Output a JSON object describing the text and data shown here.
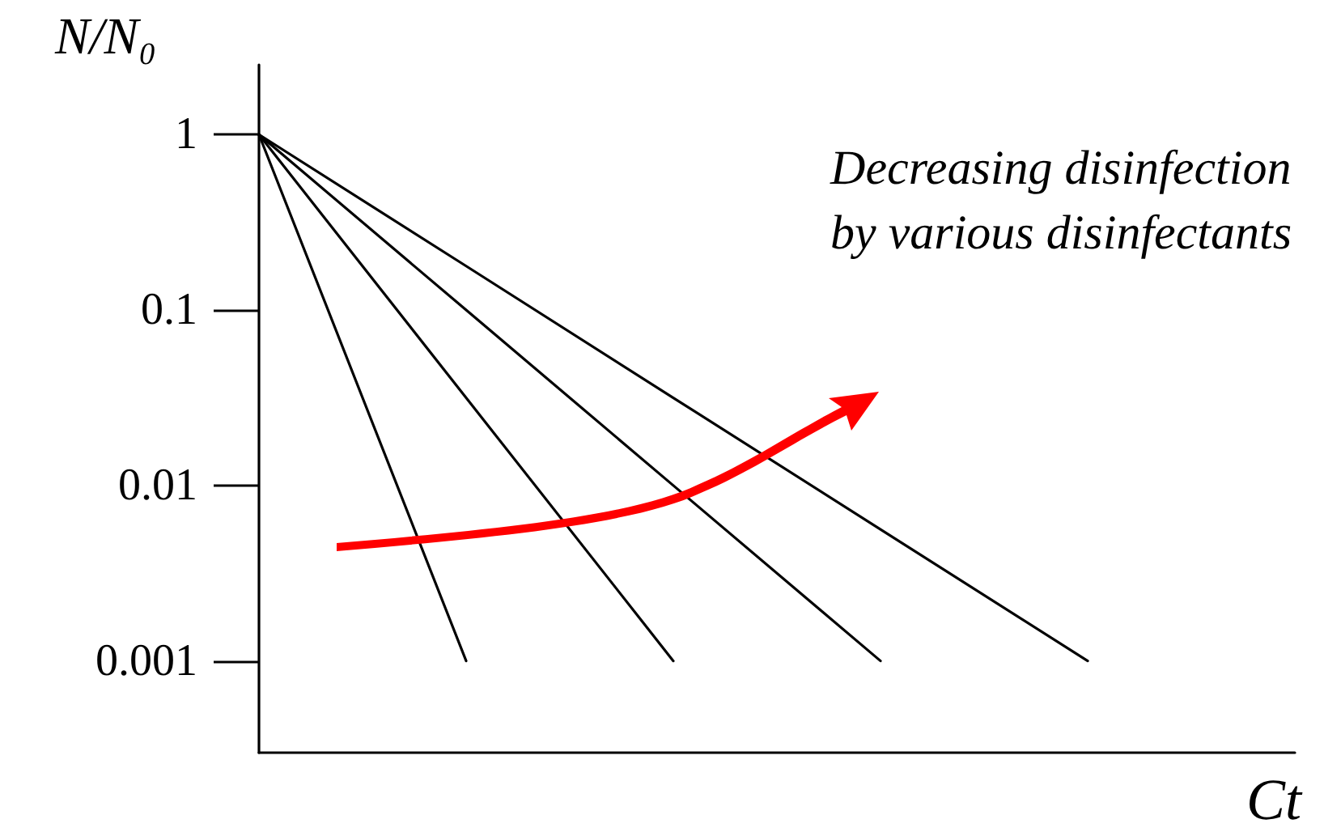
{
  "chart_data": {
    "type": "line",
    "xlabel": "Ct",
    "ylabel": "N/N₀",
    "annotations": [
      "Decreasing disinfection\nby various disinfectants"
    ],
    "categories": [
      null,
      null,
      null,
      null,
      null,
      null
    ],
    "series": [
      {
        "color": "#000000",
        "values": [
          1,
          0.001,
          null,
          null,
          null,
          null
        ]
      },
      {
        "color": "#000000",
        "values": [
          1,
          0.0316,
          0.001,
          null,
          null,
          null
        ]
      },
      {
        "color": "#000000",
        "values": [
          1,
          0.1,
          0.01,
          0.001,
          null,
          null
        ]
      },
      {
        "color": "#000000",
        "values": [
          1,
          0.178,
          0.0316,
          0.00562,
          0.001,
          null
        ]
      }
    ],
    "log": "y",
    "ylim": [
      0.0003,
      2.5
    ],
    "yticks": [
      0.001,
      0.01,
      0.1,
      1
    ],
    "tick_labels": "y",
    "grid": false,
    "marker": "none",
    "line_style": "solid"
  }
}
